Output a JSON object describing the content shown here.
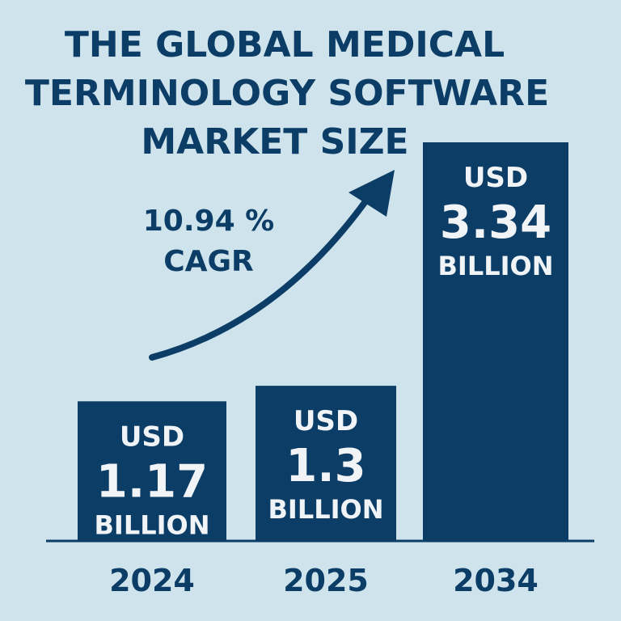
{
  "chart_data": {
    "type": "bar",
    "title_lines": [
      "THE GLOBAL MEDICAL",
      "TERMINOLOGY SOFTWARE",
      "MARKET SIZE"
    ],
    "categories": [
      "2024",
      "2025",
      "2034"
    ],
    "values": [
      1.17,
      1.3,
      3.34
    ],
    "bar_labels": [
      {
        "prefix": "USD",
        "value": "1.17",
        "suffix": "BILLION"
      },
      {
        "prefix": "USD",
        "value": "1.3",
        "suffix": "BILLION"
      },
      {
        "prefix": "USD",
        "value": "3.34",
        "suffix": "BILLION"
      }
    ],
    "annotation": {
      "line1": "10.94 %",
      "line2": "CAGR"
    },
    "xlabel": "",
    "ylabel": "",
    "grid": false,
    "colors": {
      "background": "#cfe3ec",
      "bar": "#0b3d66",
      "text": "#0b3d66",
      "bar_text": "#f1f4f7"
    }
  }
}
